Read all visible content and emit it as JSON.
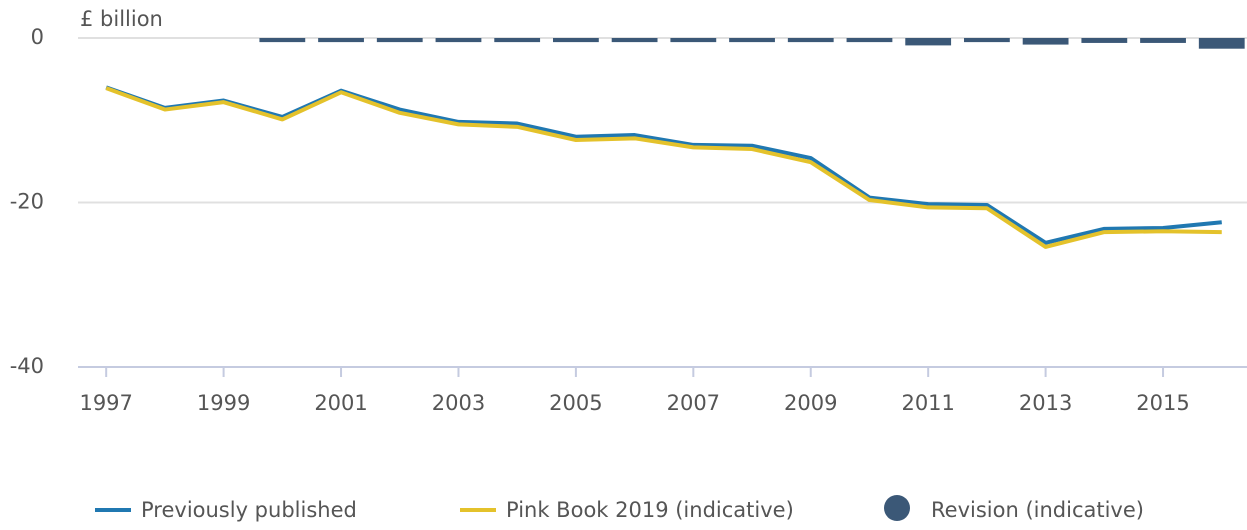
{
  "chart_data": {
    "type": "line",
    "y_label": "£ billion",
    "x": [
      1997,
      1998,
      1999,
      2000,
      2001,
      2002,
      2003,
      2004,
      2005,
      2006,
      2007,
      2008,
      2009,
      2010,
      2011,
      2012,
      2013,
      2014,
      2015,
      2016
    ],
    "series": [
      {
        "name": "Previously published",
        "type": "line",
        "color": "#2078b1",
        "values": [
          -6.0,
          -8.5,
          -7.6,
          -9.6,
          -6.4,
          -8.7,
          -10.2,
          -10.4,
          -12.0,
          -11.8,
          -13.0,
          -13.1,
          -14.6,
          -19.4,
          -20.2,
          -20.3,
          -24.9,
          -23.2,
          -23.1,
          -22.4
        ]
      },
      {
        "name": "Pink Book 2019 (indicative)",
        "type": "line",
        "color": "#e4c22b",
        "values": [
          -6.1,
          -8.7,
          -7.8,
          -9.9,
          -6.6,
          -9.1,
          -10.5,
          -10.8,
          -12.4,
          -12.2,
          -13.3,
          -13.5,
          -15.1,
          -19.7,
          -20.6,
          -20.7,
          -25.4,
          -23.6,
          -23.5,
          -23.6
        ]
      },
      {
        "name": "Revision (indicative)",
        "type": "bar",
        "color": "#3b5877",
        "values": [
          0,
          0,
          0,
          -0.5,
          -0.5,
          -0.5,
          -0.5,
          -0.5,
          -0.5,
          -0.5,
          -0.5,
          -0.5,
          -0.5,
          -0.5,
          -0.9,
          -0.5,
          -0.8,
          -0.6,
          -0.6,
          -1.3
        ]
      }
    ],
    "xlim": [
      1996.52,
      2016.43
    ],
    "xticks": [
      1997,
      1999,
      2001,
      2003,
      2005,
      2007,
      2009,
      2011,
      2013,
      2015
    ],
    "ylim": [
      -40,
      0
    ],
    "yticks": [
      0,
      -20,
      -40
    ],
    "grid": true
  }
}
